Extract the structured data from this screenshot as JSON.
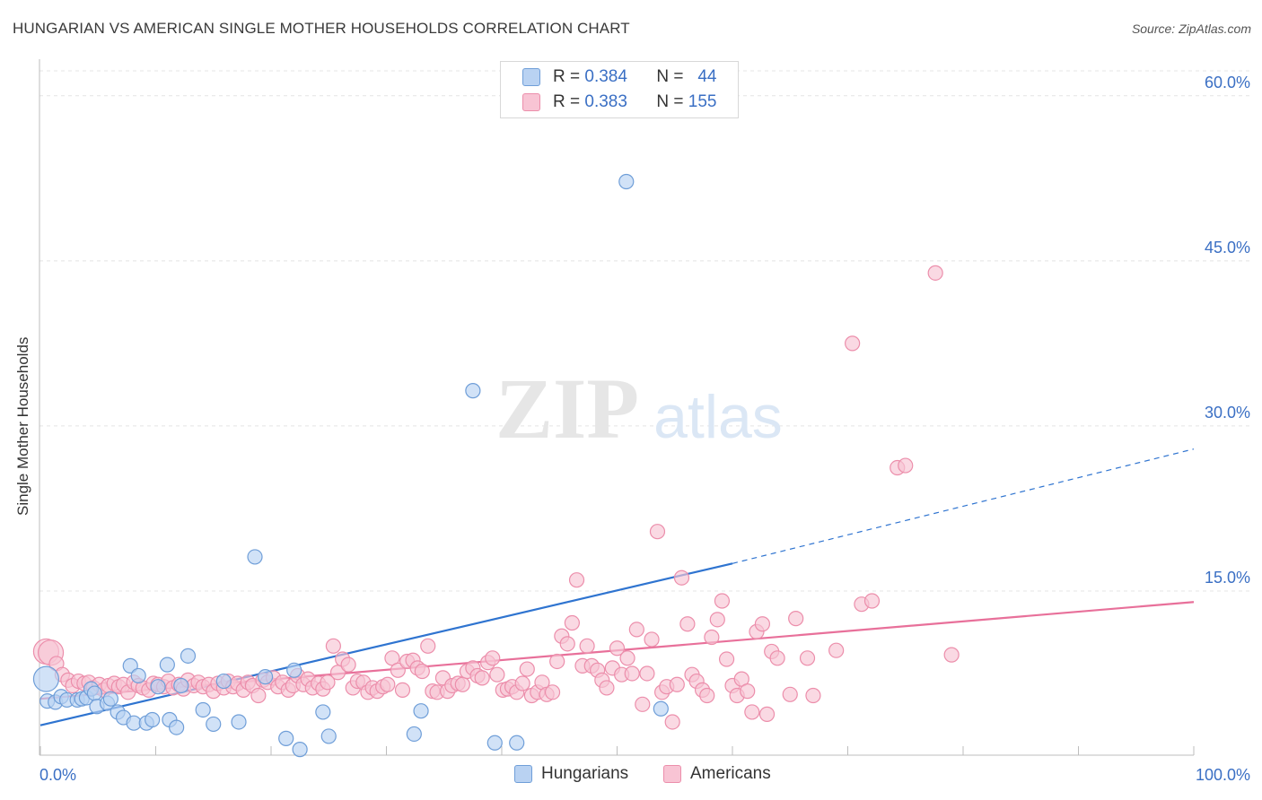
{
  "header": {
    "title": "HUNGARIAN VS AMERICAN SINGLE MOTHER HOUSEHOLDS CORRELATION CHART",
    "source": "Source: ZipAtlas.com"
  },
  "watermark": {
    "part1": "ZIP",
    "part2": "atlas"
  },
  "legend_top": {
    "rows": [
      {
        "r_label": "R =",
        "r_value": "0.384",
        "n_label": "N =",
        "n_value": "44",
        "color": "#8db4e8"
      },
      {
        "r_label": "R =",
        "r_value": "0.383",
        "n_label": "N =",
        "n_value": "155",
        "color": "#f4a7bf"
      }
    ]
  },
  "legend_bottom": [
    {
      "label": "Hungarians",
      "color": "#8db4e8"
    },
    {
      "label": "Americans",
      "color": "#f4a7bf"
    }
  ],
  "colors": {
    "blue_fill": "#b9d2f2",
    "blue_stroke": "#6f9ed8",
    "blue_line": "#2f74d0",
    "pink_fill": "#f8c4d4",
    "pink_stroke": "#ec8eab",
    "pink_line": "#e8709a",
    "axis_text": "#3a6fc4",
    "grid": "#e4e4e4"
  },
  "chart_data": {
    "type": "scatter",
    "title": "HUNGARIAN VS AMERICAN SINGLE MOTHER HOUSEHOLDS CORRELATION CHART",
    "xlabel": "",
    "ylabel": "Single Mother Households",
    "xlim": [
      0,
      100
    ],
    "ylim": [
      0,
      63
    ],
    "x_tick_labels": [
      "0.0%",
      "100.0%"
    ],
    "y_ticks": [
      15,
      30,
      45,
      60
    ],
    "y_tick_labels": [
      "15.0%",
      "30.0%",
      "45.0%",
      "60.0%"
    ],
    "grid": true,
    "legend_position": "bottom",
    "series": [
      {
        "name": "Hungarians",
        "r": 0.384,
        "n": 44,
        "trend": {
          "x0": 0,
          "y0": 2.8,
          "x1": 60,
          "y1": 17.5,
          "dashed_to_x": 100,
          "dashed_to_y": 27.9
        },
        "points": [
          [
            0.5,
            7.0
          ],
          [
            0.6,
            5.0
          ],
          [
            1.3,
            4.9
          ],
          [
            1.8,
            5.4
          ],
          [
            2.3,
            5.1
          ],
          [
            3.2,
            5.1
          ],
          [
            3.6,
            5.2
          ],
          [
            4.0,
            5.3
          ],
          [
            4.4,
            6.1
          ],
          [
            4.7,
            5.7
          ],
          [
            4.9,
            4.5
          ],
          [
            5.8,
            4.8
          ],
          [
            6.1,
            5.2
          ],
          [
            6.7,
            4.0
          ],
          [
            7.2,
            3.5
          ],
          [
            7.8,
            8.2
          ],
          [
            8.1,
            3.0
          ],
          [
            8.5,
            7.3
          ],
          [
            9.2,
            3.0
          ],
          [
            9.7,
            3.3
          ],
          [
            10.2,
            6.3
          ],
          [
            11.0,
            8.3
          ],
          [
            11.2,
            3.3
          ],
          [
            11.8,
            2.6
          ],
          [
            12.2,
            6.4
          ],
          [
            12.8,
            9.1
          ],
          [
            14.1,
            4.2
          ],
          [
            15.0,
            2.9
          ],
          [
            15.9,
            6.8
          ],
          [
            17.2,
            3.1
          ],
          [
            18.6,
            18.1
          ],
          [
            19.5,
            7.2
          ],
          [
            21.3,
            1.6
          ],
          [
            22.0,
            7.8
          ],
          [
            22.5,
            0.6
          ],
          [
            24.5,
            4.0
          ],
          [
            25.0,
            1.8
          ],
          [
            32.4,
            2.0
          ],
          [
            33.0,
            4.1
          ],
          [
            37.5,
            33.2
          ],
          [
            39.4,
            1.2
          ],
          [
            41.3,
            1.2
          ],
          [
            50.8,
            52.2
          ],
          [
            53.8,
            4.3
          ]
        ]
      },
      {
        "name": "Americans",
        "r": 0.383,
        "n": 155,
        "trend": {
          "x0": 0,
          "y0": 5.2,
          "x1": 100,
          "y1": 14.0
        },
        "points": [
          [
            0.5,
            9.5
          ],
          [
            0.9,
            9.4
          ],
          [
            1.4,
            8.4
          ],
          [
            1.9,
            7.4
          ],
          [
            2.4,
            6.9
          ],
          [
            2.8,
            6.4
          ],
          [
            3.3,
            6.8
          ],
          [
            3.8,
            6.6
          ],
          [
            4.2,
            6.7
          ],
          [
            4.6,
            6.2
          ],
          [
            5.1,
            6.5
          ],
          [
            5.5,
            6.0
          ],
          [
            5.9,
            6.4
          ],
          [
            6.4,
            6.6
          ],
          [
            6.8,
            6.3
          ],
          [
            7.2,
            6.5
          ],
          [
            7.6,
            5.8
          ],
          [
            8.1,
            6.7
          ],
          [
            8.5,
            6.4
          ],
          [
            8.9,
            6.2
          ],
          [
            9.4,
            6.0
          ],
          [
            9.8,
            6.6
          ],
          [
            10.2,
            6.5
          ],
          [
            10.7,
            6.3
          ],
          [
            11.1,
            6.8
          ],
          [
            11.5,
            6.2
          ],
          [
            12.0,
            6.5
          ],
          [
            12.4,
            6.1
          ],
          [
            12.8,
            6.9
          ],
          [
            13.3,
            6.4
          ],
          [
            13.7,
            6.7
          ],
          [
            14.1,
            6.3
          ],
          [
            14.6,
            6.5
          ],
          [
            15.0,
            5.9
          ],
          [
            15.4,
            6.6
          ],
          [
            15.9,
            6.2
          ],
          [
            16.3,
            6.8
          ],
          [
            16.7,
            6.3
          ],
          [
            17.1,
            6.6
          ],
          [
            17.6,
            6.0
          ],
          [
            18.0,
            6.7
          ],
          [
            18.4,
            6.4
          ],
          [
            18.9,
            5.5
          ],
          [
            19.3,
            6.9
          ],
          [
            19.7,
            6.7
          ],
          [
            20.2,
            7.1
          ],
          [
            20.6,
            6.3
          ],
          [
            21.0,
            6.7
          ],
          [
            21.5,
            6.0
          ],
          [
            21.9,
            6.4
          ],
          [
            22.3,
            7.3
          ],
          [
            22.8,
            6.5
          ],
          [
            23.2,
            7.0
          ],
          [
            23.6,
            6.2
          ],
          [
            24.1,
            6.6
          ],
          [
            24.5,
            6.1
          ],
          [
            24.9,
            6.7
          ],
          [
            25.4,
            10.0
          ],
          [
            25.8,
            7.6
          ],
          [
            26.2,
            8.8
          ],
          [
            26.7,
            8.3
          ],
          [
            27.1,
            6.2
          ],
          [
            27.5,
            6.8
          ],
          [
            28.0,
            6.7
          ],
          [
            28.4,
            5.8
          ],
          [
            28.8,
            6.2
          ],
          [
            29.2,
            5.9
          ],
          [
            29.7,
            6.3
          ],
          [
            30.1,
            6.5
          ],
          [
            30.5,
            8.9
          ],
          [
            31.0,
            7.8
          ],
          [
            31.4,
            6.0
          ],
          [
            31.8,
            8.6
          ],
          [
            32.3,
            8.7
          ],
          [
            32.7,
            8.0
          ],
          [
            33.1,
            7.7
          ],
          [
            33.6,
            10.0
          ],
          [
            34.0,
            5.9
          ],
          [
            34.4,
            5.8
          ],
          [
            34.9,
            7.1
          ],
          [
            35.3,
            5.9
          ],
          [
            35.7,
            6.4
          ],
          [
            36.2,
            6.6
          ],
          [
            36.6,
            6.5
          ],
          [
            37.0,
            7.7
          ],
          [
            37.5,
            8.0
          ],
          [
            37.9,
            7.3
          ],
          [
            38.3,
            7.1
          ],
          [
            38.8,
            8.5
          ],
          [
            39.2,
            8.9
          ],
          [
            39.6,
            7.4
          ],
          [
            40.1,
            6.0
          ],
          [
            40.5,
            6.1
          ],
          [
            40.9,
            6.3
          ],
          [
            41.3,
            5.8
          ],
          [
            41.8,
            6.6
          ],
          [
            42.2,
            7.9
          ],
          [
            42.6,
            5.5
          ],
          [
            43.1,
            5.8
          ],
          [
            43.5,
            6.7
          ],
          [
            43.9,
            5.6
          ],
          [
            44.4,
            5.8
          ],
          [
            44.8,
            8.6
          ],
          [
            45.2,
            10.9
          ],
          [
            45.7,
            10.2
          ],
          [
            46.1,
            12.1
          ],
          [
            46.5,
            16.0
          ],
          [
            47.0,
            8.2
          ],
          [
            47.4,
            10.0
          ],
          [
            47.8,
            8.2
          ],
          [
            48.3,
            7.8
          ],
          [
            48.7,
            6.9
          ],
          [
            49.1,
            6.2
          ],
          [
            49.6,
            8.0
          ],
          [
            50.0,
            9.8
          ],
          [
            50.4,
            7.4
          ],
          [
            50.9,
            8.9
          ],
          [
            51.3,
            7.5
          ],
          [
            51.7,
            11.5
          ],
          [
            52.2,
            4.7
          ],
          [
            52.6,
            7.5
          ],
          [
            53.0,
            10.6
          ],
          [
            53.5,
            20.4
          ],
          [
            53.9,
            5.8
          ],
          [
            54.3,
            6.3
          ],
          [
            54.8,
            3.1
          ],
          [
            55.2,
            6.5
          ],
          [
            55.6,
            16.2
          ],
          [
            56.1,
            12.0
          ],
          [
            56.5,
            7.4
          ],
          [
            56.9,
            6.8
          ],
          [
            57.4,
            6.0
          ],
          [
            57.8,
            5.5
          ],
          [
            58.2,
            10.8
          ],
          [
            58.7,
            12.4
          ],
          [
            59.1,
            14.1
          ],
          [
            59.5,
            8.8
          ],
          [
            60.0,
            6.4
          ],
          [
            60.4,
            5.5
          ],
          [
            60.8,
            7.0
          ],
          [
            61.3,
            5.9
          ],
          [
            61.7,
            4.0
          ],
          [
            62.1,
            11.3
          ],
          [
            62.6,
            12.0
          ],
          [
            63.0,
            3.8
          ],
          [
            63.4,
            9.5
          ],
          [
            63.9,
            8.9
          ],
          [
            65.0,
            5.6
          ],
          [
            65.5,
            12.5
          ],
          [
            66.5,
            8.9
          ],
          [
            67.0,
            5.5
          ],
          [
            69.0,
            9.6
          ],
          [
            70.4,
            37.5
          ],
          [
            71.2,
            13.8
          ],
          [
            72.1,
            14.1
          ],
          [
            74.3,
            26.2
          ],
          [
            75.0,
            26.4
          ],
          [
            77.6,
            43.9
          ],
          [
            79.0,
            9.2
          ]
        ]
      }
    ]
  }
}
